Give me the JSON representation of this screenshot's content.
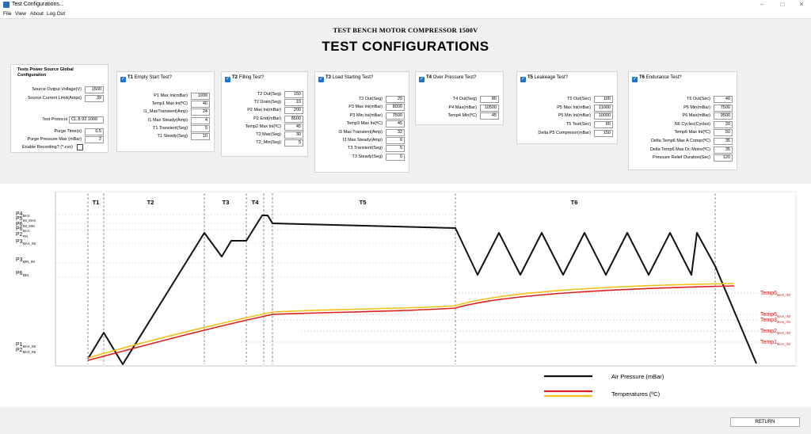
{
  "window": {
    "title": "Test Configurations..."
  },
  "menu": [
    "File",
    "View",
    "About",
    "Log Out"
  ],
  "header": {
    "subtitle": "TEST BENCH MOTOR COMPRESSOR 1500V",
    "title": "TEST CONFIGURATIONS"
  },
  "global": {
    "title_line1": "Tests Power Source Global",
    "title_line2": "Configuraiton",
    "fields": [
      {
        "label": "Source Output Voltage(V)",
        "value": "1500"
      },
      {
        "label": "Source Current Limit(Amps)",
        "value": "39"
      }
    ],
    "protocol_label": "Test Protocol",
    "protocol_value": "CL.8.92.1000",
    "fields2": [
      {
        "label": "Purge Time(s)",
        "value": "0.5"
      },
      {
        "label": "Purge Pressure Max (mBar)",
        "value": "2"
      }
    ],
    "enable_label": "Enable Recording? (*.cvs)"
  },
  "panels": [
    {
      "id": "t1",
      "title": "Empty Start Test?",
      "tag": "T1",
      "fields": [
        {
          "label": "P1 Max Ini(mBar)",
          "value": "1000"
        },
        {
          "label": "Temp1 Max Ini(ºC)",
          "value": "40"
        },
        {
          "label": "I1_MaxTransient(Amp)",
          "value": "24"
        },
        {
          "label": "I1 Max Steady(Amp)",
          "value": "4"
        },
        {
          "label": "T1 Transient(Seg)",
          "value": "5"
        },
        {
          "label": "T1 Steady(Seg)",
          "value": "10"
        }
      ]
    },
    {
      "id": "t2",
      "title": "Filling Test?",
      "tag": "T2",
      "fields": [
        {
          "label": "T2 Out(Seg)",
          "value": "150"
        },
        {
          "label": "T2 Drain(Seg)",
          "value": "10"
        },
        {
          "label": "P2 Max Ini(mBar)",
          "value": "200"
        },
        {
          "label": "P2 End(mBar)",
          "value": "8500"
        },
        {
          "label": "Temp2 Max Ini(ºC)",
          "value": "45"
        },
        {
          "label": "T2 Max(Seg)",
          "value": "30"
        },
        {
          "label": "T2_Min(Seg)",
          "value": "5"
        }
      ]
    },
    {
      "id": "t3",
      "title": "Load Starting Test?",
      "tag": "T3",
      "fields": [
        {
          "label": "T3 Out(Seg)",
          "value": "20"
        },
        {
          "label": "P3 Max Ini(mBar)",
          "value": "8000"
        },
        {
          "label": "P3 Min Ini(mBar)",
          "value": "7500"
        },
        {
          "label": "Temp3 Max Ini(ºC)",
          "value": "45"
        },
        {
          "label": "I3 Max Transient(Amp)",
          "value": "32"
        },
        {
          "label": "I3 Max Steady(Amp)",
          "value": "6"
        },
        {
          "label": "T3 Transient(Seg)",
          "value": "5"
        },
        {
          "label": "T3 Steady(Seg)",
          "value": "0"
        }
      ]
    },
    {
      "id": "t4",
      "title": "Over Pressure Test?",
      "tag": "T4",
      "fields": [
        {
          "label": "T4 Out(Seg)",
          "value": "80"
        },
        {
          "label": "P4 Max(mBar)",
          "value": "10500"
        },
        {
          "label": "Temp4 Min(ºC)",
          "value": "45"
        }
      ]
    },
    {
      "id": "t5",
      "title": "Leakeage Test?",
      "tag": "T5",
      "fields": [
        {
          "label": "T5 Out(Sec)",
          "value": "100"
        },
        {
          "label": "P5 Max Ini(mBar)",
          "value": "11000"
        },
        {
          "label": "P5 Min Ini(mBar)",
          "value": "10000"
        },
        {
          "label": "T5 Test(Sec)",
          "value": "60"
        },
        {
          "label": "Delta P5 Compresor(mBar)",
          "value": "150"
        }
      ]
    },
    {
      "id": "t6",
      "title": "Endurance Test?",
      "tag": "T6",
      "fields": [
        {
          "label": "T6 Out(Sec)",
          "value": "40"
        },
        {
          "label": "P6 Min(mBar)",
          "value": "7500"
        },
        {
          "label": "P6 Max(mBar)",
          "value": "9500"
        },
        {
          "label": "N6 Cycles(Cycles)",
          "value": "20"
        },
        {
          "label": "Temp6 Max Ini(ºC)",
          "value": "50"
        },
        {
          "label": "Delta Temp6 Max A Compr(ºC)",
          "value": "35"
        },
        {
          "label": "Delta Temp6 Max Dc Motor(ºC)",
          "value": "35"
        },
        {
          "label": "Pressure Relief Duration(Sec)",
          "value": "120"
        }
      ]
    }
  ],
  "diagram": {
    "phases": [
      "T1",
      "T2",
      "T3",
      "T4",
      "T5",
      "T6"
    ],
    "left_labels": [
      {
        "main": "P4",
        "sub": "MAX"
      },
      {
        "main": "P5",
        "sub": "INI_MAX"
      },
      {
        "main": "P6",
        "sub": "INI_MIN"
      },
      {
        "main": "P6",
        "sub": "MAX"
      },
      {
        "main": "P2",
        "sub": "FIN"
      },
      {
        "main": "P3",
        "sub": "MAX_INI"
      },
      {
        "main": "P3",
        "sub": "MIN_INI"
      },
      {
        "main": "P6",
        "sub": "MIN"
      },
      {
        "main": "P1",
        "sub": "MAX_INI"
      },
      {
        "main": "P2",
        "sub": "MAX_INI"
      }
    ],
    "right_labels": [
      {
        "main": "Temp6",
        "sub": "MAX_INI"
      },
      {
        "main": "Temp6",
        "sub": "MAX_INI"
      },
      {
        "main": "Temp3",
        "sub": "MAX_INI"
      },
      {
        "main": "Temp2",
        "sub": "MAX_INI"
      },
      {
        "main": "Temp1",
        "sub": "MAX_INI"
      }
    ],
    "legend": [
      {
        "label": "Air Pressure (mBar)",
        "color": "#111111"
      },
      {
        "label": "Temperatures (ºC)",
        "colors": [
          "#dd1f1f",
          "#f1c21b"
        ]
      }
    ]
  },
  "footer": {
    "return_label": "RETURN"
  }
}
